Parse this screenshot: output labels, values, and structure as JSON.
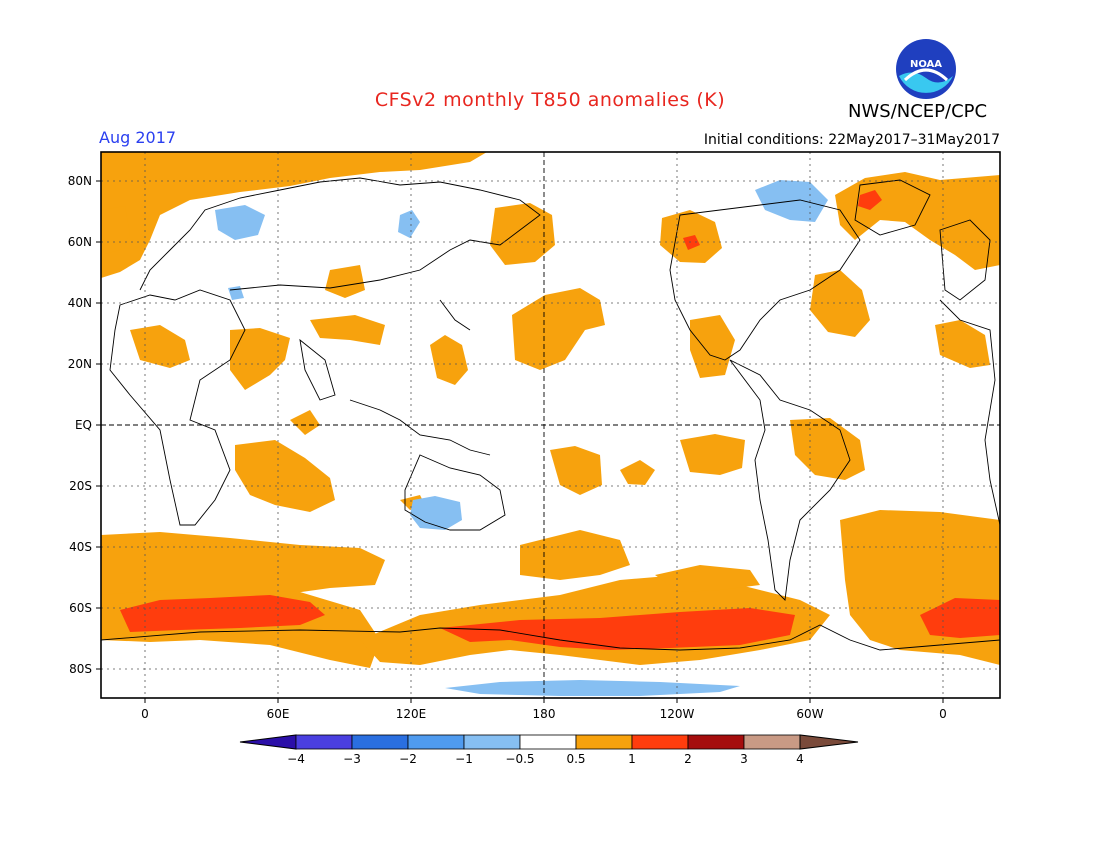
{
  "title": "CFSv2 monthly T850 anomalies (K)",
  "organization": "NWS/NCEP/CPC",
  "month": "Aug 2017",
  "initial_conditions": "Initial conditions: 22May2017–31May2017",
  "logo_text": "NOAA",
  "map": {
    "lat_labels": [
      "80N",
      "60N",
      "40N",
      "20N",
      "EQ",
      "20S",
      "40S",
      "60S",
      "80S"
    ],
    "lon_labels": [
      "0",
      "60E",
      "120E",
      "180",
      "120W",
      "60W",
      "0"
    ]
  },
  "legend": {
    "ticks": [
      "−4",
      "−3",
      "−2",
      "−1",
      "−0.5",
      "0.5",
      "1",
      "2",
      "3",
      "4"
    ],
    "colors": [
      "#2b0fa8",
      "#4a3fe0",
      "#2a6fe0",
      "#4f9bef",
      "#86bff2",
      "#ffffff",
      "#f7a20d",
      "#ff3d0d",
      "#a50d0d",
      "#c99a85",
      "#7a4a3a"
    ]
  },
  "colors": {
    "warm1": "#f7a20d",
    "warm2": "#ff3d0d",
    "cool1": "#86bff2",
    "title": "#e8261f",
    "month": "#2a3ff0"
  }
}
